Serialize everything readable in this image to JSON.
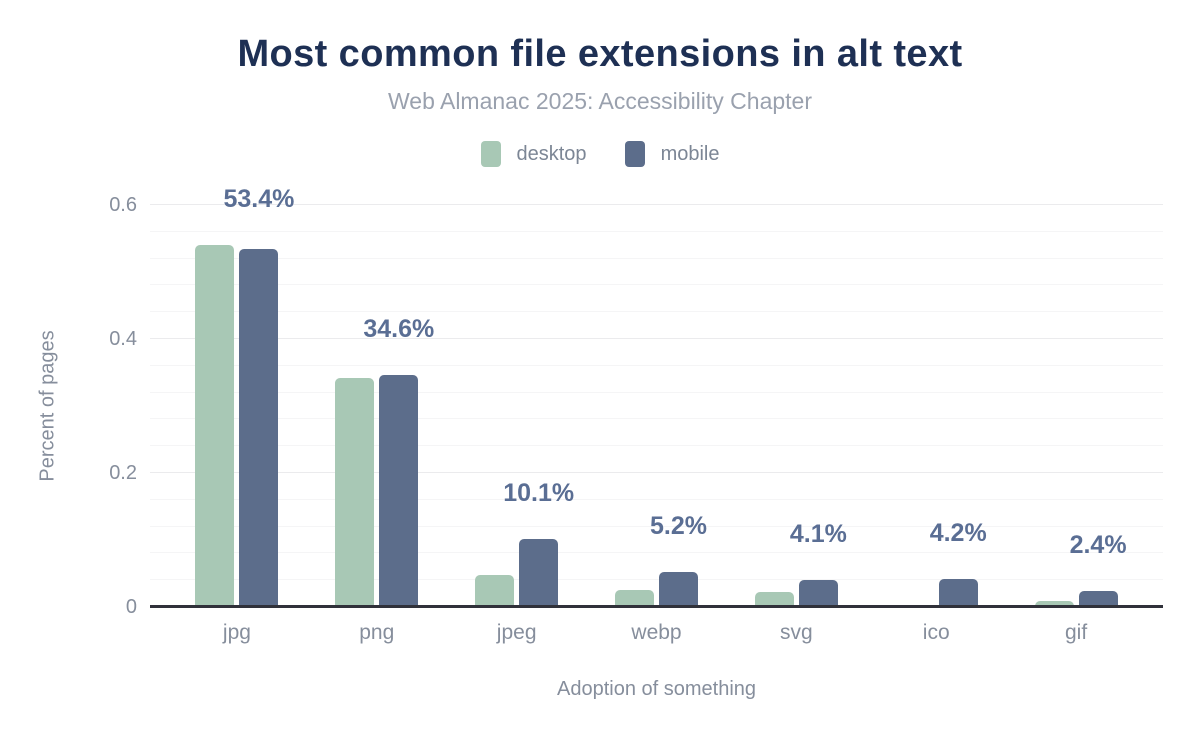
{
  "chart_data": {
    "type": "bar",
    "title": "Most common file extensions in alt text",
    "subtitle": "Web Almanac 2025: Accessibility Chapter",
    "xlabel": "Adoption of something",
    "ylabel": "Percent of pages",
    "categories": [
      "jpg",
      "png",
      "jpeg",
      "webp",
      "svg",
      "ico",
      "gif"
    ],
    "series": [
      {
        "name": "desktop",
        "color": "#a8c8b5",
        "values": [
          0.54,
          0.342,
          0.048,
          0.026,
          0.023,
          null,
          0.009
        ]
      },
      {
        "name": "mobile",
        "color": "#5c6d8b",
        "values": [
          0.534,
          0.346,
          0.101,
          0.052,
          0.041,
          0.042,
          0.024
        ]
      }
    ],
    "data_labels": [
      "53.4%",
      "34.6%",
      "10.1%",
      "5.2%",
      "4.1%",
      "4.2%",
      "2.4%"
    ],
    "data_labels_follow_series": "mobile",
    "yticks": [
      0,
      0.2,
      0.4,
      0.6
    ],
    "ytick_labels": [
      "0",
      "0.2",
      "0.4",
      "0.6"
    ],
    "ylim": [
      0,
      0.6
    ],
    "minor_grid_step": 0.04,
    "grid": true,
    "legend_position": "top"
  },
  "colors": {
    "title": "#1e3054",
    "subtitle": "#9aa1ae",
    "legend_text": "#7c8695",
    "axis_text": "#868e9c",
    "data_label": "#5a6e94",
    "baseline": "#30313a",
    "grid_major": "#ebebed",
    "grid_minor": "#f5f5f6",
    "background": "#ffffff"
  }
}
